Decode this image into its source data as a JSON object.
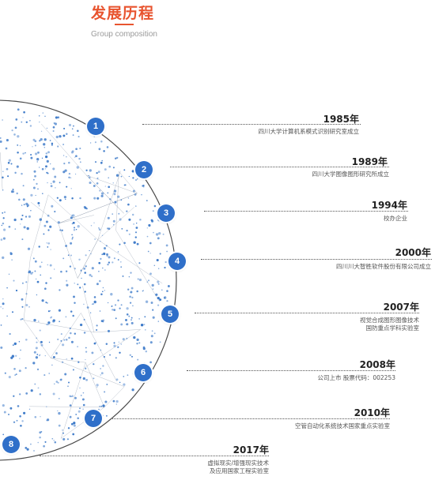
{
  "header": {
    "title": "发展历程",
    "subtitle": "Group composition"
  },
  "colors": {
    "accent": "#e8542f",
    "marker": "#2f6fc9",
    "dots": "#3a78c8"
  },
  "timeline": [
    {
      "number": "1",
      "year": "1985年",
      "lines": [
        "四川大学计算机系模式识别研究室成立"
      ]
    },
    {
      "number": "2",
      "year": "1989年",
      "lines": [
        "四川大学图像图形研究所成立"
      ]
    },
    {
      "number": "3",
      "year": "1994年",
      "lines": [
        "校办企业"
      ]
    },
    {
      "number": "4",
      "year": "2000年",
      "lines": [
        "四川川大智胜软件股份有限公司成立"
      ]
    },
    {
      "number": "5",
      "year": "2007年",
      "lines": [
        "视觉合成图形图像技术",
        "国防重点学科实验室"
      ]
    },
    {
      "number": "6",
      "year": "2008年",
      "lines": [
        "公司上市  股票代码：002253"
      ]
    },
    {
      "number": "7",
      "year": "2010年",
      "lines": [
        "空管自动化系统技术国家重点实验室"
      ]
    },
    {
      "number": "8",
      "year": "2017年",
      "lines": [
        "虚拟现实/增强现实技术",
        "及应用国家工程实验室"
      ]
    }
  ]
}
